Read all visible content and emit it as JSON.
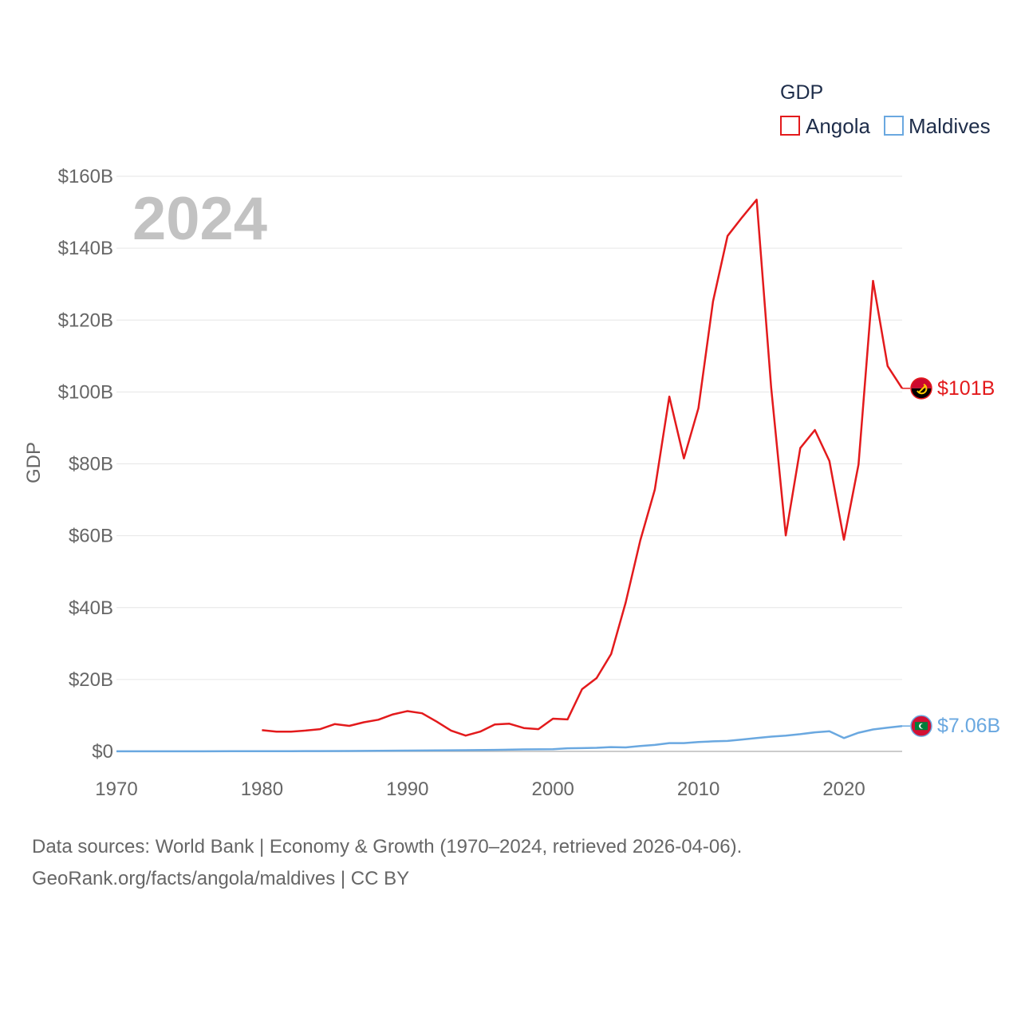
{
  "chart_data": {
    "type": "line",
    "title": "",
    "ylabel": "GDP",
    "xlabel": "",
    "year_label": "2024",
    "legend": {
      "title": "GDP",
      "position": "top-right"
    },
    "xlim": [
      1970,
      2024
    ],
    "ylim": [
      0,
      160
    ],
    "x_ticks": [
      1970,
      1980,
      1990,
      2000,
      2010,
      2020
    ],
    "y_ticks": [
      {
        "value": 0,
        "label": "$0"
      },
      {
        "value": 20,
        "label": "$20B"
      },
      {
        "value": 40,
        "label": "$40B"
      },
      {
        "value": 60,
        "label": "$60B"
      },
      {
        "value": 80,
        "label": "$80B"
      },
      {
        "value": 100,
        "label": "$100B"
      },
      {
        "value": 120,
        "label": "$120B"
      },
      {
        "value": 140,
        "label": "$140B"
      },
      {
        "value": 160,
        "label": "$160B"
      }
    ],
    "grid": true,
    "units": "billions of US$",
    "series": [
      {
        "name": "Angola",
        "color": "#e31a1c",
        "end_label": "$101B",
        "flag": "angola-flag",
        "x": [
          1980,
          1981,
          1982,
          1983,
          1984,
          1985,
          1986,
          1987,
          1988,
          1989,
          1990,
          1991,
          1992,
          1993,
          1994,
          1995,
          1996,
          1997,
          1998,
          1999,
          2000,
          2001,
          2002,
          2003,
          2004,
          2005,
          2006,
          2007,
          2008,
          2009,
          2010,
          2011,
          2012,
          2013,
          2014,
          2015,
          2016,
          2017,
          2018,
          2019,
          2020,
          2021,
          2022,
          2023,
          2024
        ],
        "values": [
          5.9,
          5.5,
          5.5,
          5.8,
          6.2,
          7.6,
          7.1,
          8.1,
          8.8,
          10.3,
          11.2,
          10.6,
          8.3,
          5.8,
          4.4,
          5.5,
          7.5,
          7.7,
          6.5,
          6.2,
          9.1,
          8.9,
          17.3,
          20.4,
          27.1,
          41.4,
          58.7,
          72.8,
          98.7,
          81.5,
          95.5,
          125.2,
          143.4,
          148.6,
          153.5,
          101.2,
          60.1,
          84.4,
          89.4,
          80.8,
          58.9,
          79.8,
          130.9,
          107.2,
          101.0
        ]
      },
      {
        "name": "Maldives",
        "color": "#6aa8e0",
        "end_label": "$7.06B",
        "flag": "maldives-flag",
        "x": [
          1970,
          1972,
          1974,
          1976,
          1978,
          1980,
          1982,
          1984,
          1986,
          1988,
          1990,
          1992,
          1994,
          1996,
          1998,
          2000,
          2001,
          2002,
          2003,
          2004,
          2005,
          2006,
          2007,
          2008,
          2009,
          2010,
          2011,
          2012,
          2013,
          2014,
          2015,
          2016,
          2017,
          2018,
          2019,
          2020,
          2021,
          2022,
          2023,
          2024
        ],
        "values": [
          0.02,
          0.02,
          0.03,
          0.03,
          0.04,
          0.05,
          0.06,
          0.08,
          0.12,
          0.16,
          0.22,
          0.28,
          0.34,
          0.42,
          0.55,
          0.62,
          0.87,
          0.9,
          1.0,
          1.2,
          1.1,
          1.5,
          1.8,
          2.3,
          2.3,
          2.6,
          2.8,
          2.9,
          3.3,
          3.7,
          4.1,
          4.4,
          4.8,
          5.3,
          5.6,
          3.7,
          5.2,
          6.1,
          6.6,
          7.06
        ]
      }
    ]
  },
  "source": {
    "line1": "Data sources: World Bank | Economy & Growth (1970–2024, retrieved 2026-04-06).",
    "line2": "GeoRank.org/facts/angola/maldives | CC BY"
  }
}
